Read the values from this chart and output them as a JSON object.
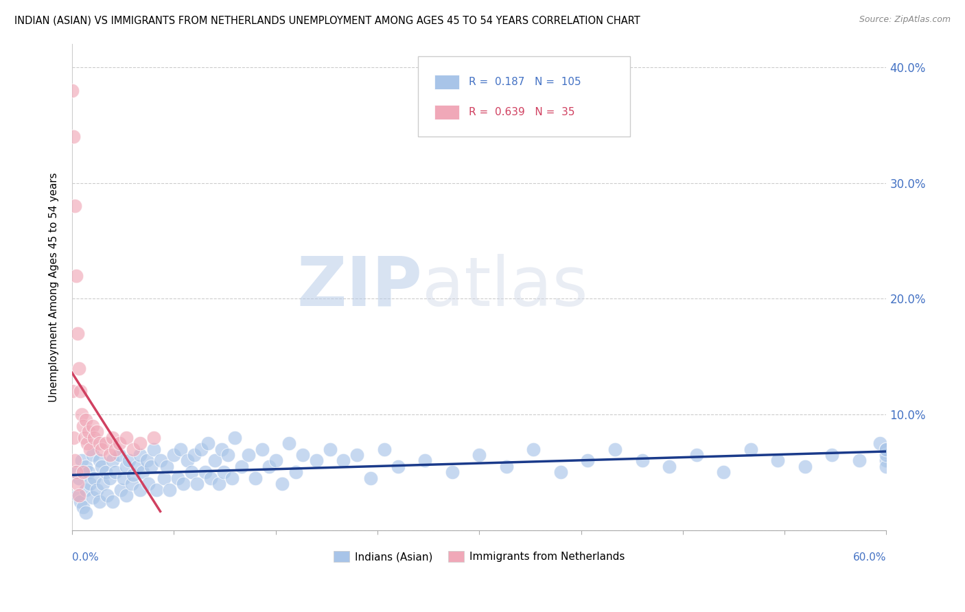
{
  "title": "INDIAN (ASIAN) VS IMMIGRANTS FROM NETHERLANDS UNEMPLOYMENT AMONG AGES 45 TO 54 YEARS CORRELATION CHART",
  "source": "Source: ZipAtlas.com",
  "ylabel": "Unemployment Among Ages 45 to 54 years",
  "xlim": [
    0,
    0.6
  ],
  "ylim": [
    0,
    0.42
  ],
  "yticks": [
    0.0,
    0.1,
    0.2,
    0.3,
    0.4
  ],
  "ytick_labels": [
    "",
    "10.0%",
    "20.0%",
    "30.0%",
    "40.0%"
  ],
  "watermark_zip": "ZIP",
  "watermark_atlas": "atlas",
  "legend_blue_R": "0.187",
  "legend_blue_N": "105",
  "legend_pink_R": "0.639",
  "legend_pink_N": "35",
  "blue_color": "#a8c4e8",
  "pink_color": "#f0a8b8",
  "blue_line_color": "#1a3a8a",
  "pink_line_color": "#d04060",
  "blue_x": [
    0.003,
    0.004,
    0.005,
    0.006,
    0.007,
    0.008,
    0.01,
    0.01,
    0.01,
    0.012,
    0.013,
    0.015,
    0.015,
    0.016,
    0.018,
    0.02,
    0.02,
    0.022,
    0.023,
    0.025,
    0.026,
    0.028,
    0.03,
    0.03,
    0.032,
    0.035,
    0.036,
    0.038,
    0.04,
    0.04,
    0.042,
    0.044,
    0.045,
    0.048,
    0.05,
    0.05,
    0.052,
    0.055,
    0.056,
    0.058,
    0.06,
    0.062,
    0.065,
    0.068,
    0.07,
    0.072,
    0.075,
    0.078,
    0.08,
    0.082,
    0.085,
    0.088,
    0.09,
    0.092,
    0.095,
    0.098,
    0.1,
    0.102,
    0.105,
    0.108,
    0.11,
    0.112,
    0.115,
    0.118,
    0.12,
    0.125,
    0.13,
    0.135,
    0.14,
    0.145,
    0.15,
    0.155,
    0.16,
    0.165,
    0.17,
    0.18,
    0.19,
    0.2,
    0.21,
    0.22,
    0.23,
    0.24,
    0.26,
    0.28,
    0.3,
    0.32,
    0.34,
    0.36,
    0.38,
    0.4,
    0.42,
    0.44,
    0.46,
    0.48,
    0.5,
    0.52,
    0.54,
    0.56,
    0.58,
    0.595,
    0.6,
    0.6,
    0.6,
    0.6,
    0.6
  ],
  "blue_y": [
    0.05,
    0.03,
    0.045,
    0.025,
    0.06,
    0.02,
    0.055,
    0.035,
    0.015,
    0.05,
    0.04,
    0.065,
    0.028,
    0.045,
    0.035,
    0.06,
    0.025,
    0.055,
    0.04,
    0.05,
    0.03,
    0.045,
    0.06,
    0.025,
    0.05,
    0.065,
    0.035,
    0.045,
    0.055,
    0.03,
    0.06,
    0.04,
    0.048,
    0.055,
    0.065,
    0.035,
    0.05,
    0.06,
    0.04,
    0.055,
    0.07,
    0.035,
    0.06,
    0.045,
    0.055,
    0.035,
    0.065,
    0.045,
    0.07,
    0.04,
    0.06,
    0.05,
    0.065,
    0.04,
    0.07,
    0.05,
    0.075,
    0.045,
    0.06,
    0.04,
    0.07,
    0.05,
    0.065,
    0.045,
    0.08,
    0.055,
    0.065,
    0.045,
    0.07,
    0.055,
    0.06,
    0.04,
    0.075,
    0.05,
    0.065,
    0.06,
    0.07,
    0.06,
    0.065,
    0.045,
    0.07,
    0.055,
    0.06,
    0.05,
    0.065,
    0.055,
    0.07,
    0.05,
    0.06,
    0.07,
    0.06,
    0.055,
    0.065,
    0.05,
    0.07,
    0.06,
    0.055,
    0.065,
    0.06,
    0.075,
    0.07,
    0.06,
    0.055,
    0.065,
    0.07
  ],
  "pink_x": [
    0.0,
    0.0,
    0.001,
    0.001,
    0.002,
    0.002,
    0.003,
    0.003,
    0.004,
    0.004,
    0.005,
    0.005,
    0.006,
    0.007,
    0.008,
    0.008,
    0.009,
    0.01,
    0.011,
    0.012,
    0.013,
    0.015,
    0.016,
    0.018,
    0.02,
    0.022,
    0.025,
    0.028,
    0.03,
    0.032,
    0.035,
    0.04,
    0.045,
    0.05,
    0.06
  ],
  "pink_y": [
    0.38,
    0.12,
    0.34,
    0.08,
    0.28,
    0.06,
    0.22,
    0.05,
    0.17,
    0.04,
    0.14,
    0.03,
    0.12,
    0.1,
    0.09,
    0.05,
    0.08,
    0.095,
    0.075,
    0.085,
    0.07,
    0.09,
    0.08,
    0.085,
    0.075,
    0.07,
    0.075,
    0.065,
    0.08,
    0.07,
    0.075,
    0.08,
    0.07,
    0.075,
    0.08
  ]
}
